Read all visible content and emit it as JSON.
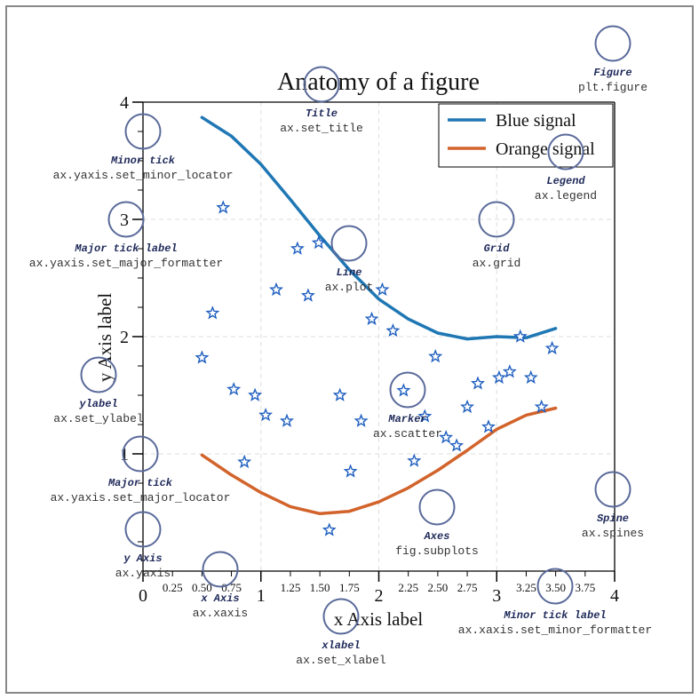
{
  "figure": {
    "title": "Anatomy of a figure",
    "xlabel": "x Axis label",
    "ylabel": "y Axis label"
  },
  "chart_data": {
    "type": "line",
    "xlim": [
      0,
      4
    ],
    "ylim": [
      0,
      4
    ],
    "grid": true,
    "legend_placement": "top-right",
    "x_major_ticks": [
      "0",
      "1",
      "2",
      "3",
      "4"
    ],
    "x_minor_ticks": [
      "0.25",
      "0.50",
      "0.75",
      "1.25",
      "1.50",
      "1.75",
      "2.25",
      "2.50",
      "2.75",
      "3.25",
      "3.50",
      "3.75"
    ],
    "y_major_ticks": [
      "1",
      "2",
      "3",
      "4"
    ],
    "series": [
      {
        "name": "Blue signal",
        "kind": "line",
        "color": "#1f77b4",
        "x": [
          0.5,
          0.75,
          1.0,
          1.25,
          1.5,
          1.75,
          2.0,
          2.25,
          2.5,
          2.75,
          3.0,
          3.25,
          3.5
        ],
        "y": [
          3.87,
          3.71,
          3.47,
          3.17,
          2.86,
          2.57,
          2.32,
          2.15,
          2.03,
          1.98,
          2.0,
          1.99,
          2.07
        ]
      },
      {
        "name": "Orange signal",
        "kind": "line",
        "color": "#d2632b",
        "x": [
          0.5,
          0.75,
          1.0,
          1.25,
          1.5,
          1.75,
          2.0,
          2.25,
          2.5,
          2.75,
          3.0,
          3.25,
          3.5
        ],
        "y": [
          0.99,
          0.82,
          0.67,
          0.55,
          0.49,
          0.51,
          0.59,
          0.71,
          0.86,
          1.03,
          1.21,
          1.33,
          1.39
        ]
      },
      {
        "name": "",
        "kind": "scatter",
        "marker": "star",
        "color": "#1f5fbf",
        "x": [
          0.5,
          0.59,
          0.68,
          0.77,
          0.86,
          0.95,
          1.04,
          1.13,
          1.22,
          1.31,
          1.4,
          1.49,
          1.58,
          1.67,
          1.76,
          1.85,
          1.94,
          2.03,
          2.12,
          2.21,
          2.3,
          2.39,
          2.48,
          2.57,
          2.66,
          2.75,
          2.84,
          2.93,
          3.02,
          3.11,
          3.2,
          3.29,
          3.38,
          3.47
        ],
        "y": [
          1.82,
          2.2,
          3.1,
          1.55,
          0.93,
          1.5,
          1.33,
          2.4,
          1.28,
          2.75,
          2.35,
          2.8,
          0.35,
          1.5,
          0.85,
          1.28,
          2.15,
          2.4,
          2.05,
          1.54,
          0.94,
          1.32,
          1.83,
          1.14,
          1.07,
          1.4,
          1.6,
          1.23,
          1.65,
          1.7,
          2.0,
          1.65,
          1.4,
          1.9
        ]
      }
    ]
  },
  "annotations": [
    {
      "title": "Figure",
      "code": "plt.figure"
    },
    {
      "title": "Title",
      "code": "ax.set_title"
    },
    {
      "title": "Legend",
      "code": "ax.legend"
    },
    {
      "title": "Minor tick",
      "code": "ax.yaxis.set_minor_locator"
    },
    {
      "title": "Major tick label",
      "code": "ax.yaxis.set_major_formatter"
    },
    {
      "title": "Grid",
      "code": "ax.grid"
    },
    {
      "title": "Line",
      "code": "ax.plot"
    },
    {
      "title": "ylabel",
      "code": "ax.set_ylabel"
    },
    {
      "title": "Marker",
      "code": "ax.scatter"
    },
    {
      "title": "Major tick",
      "code": "ax.yaxis.set_major_locator"
    },
    {
      "title": "Spine",
      "code": "ax.spines"
    },
    {
      "title": "Axes",
      "code": "fig.subplots"
    },
    {
      "title": "y Axis",
      "code": "ax.yaxis"
    },
    {
      "title": "x Axis",
      "code": "ax.xaxis"
    },
    {
      "title": "Minor tick label",
      "code": "ax.xaxis.set_minor_formatter"
    },
    {
      "title": "xlabel",
      "code": "ax.set_xlabel"
    }
  ],
  "colors": {
    "annotation_circle": "#5a6a9a",
    "annotation_title": "#1f2a5a",
    "grid": "#dddddd",
    "frame": "#888888"
  }
}
